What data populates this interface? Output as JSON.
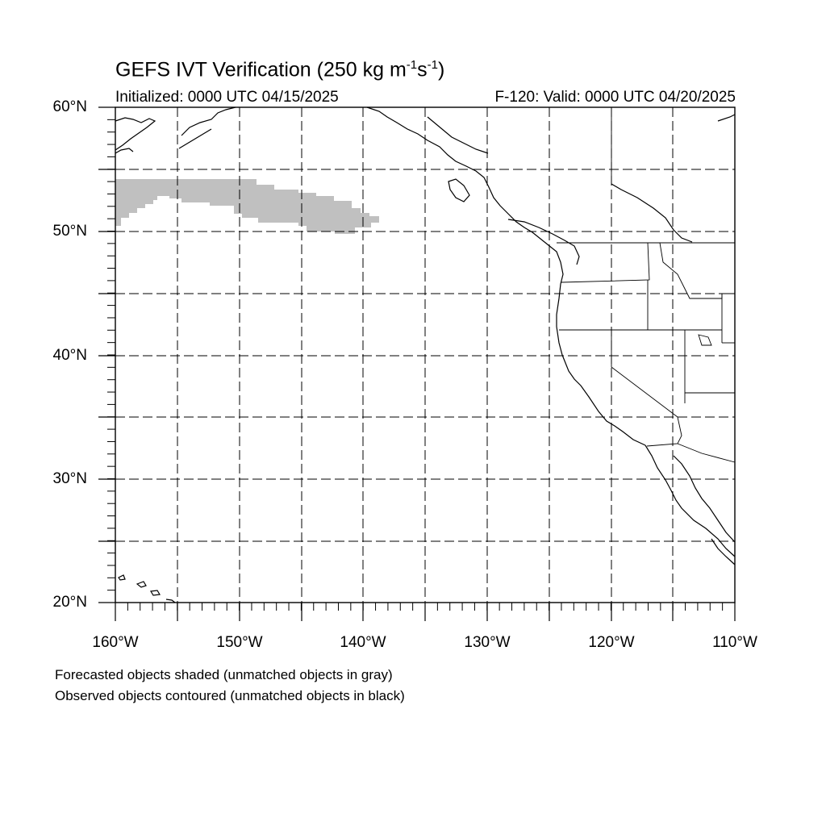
{
  "title": {
    "main": "GEFS IVT Verification (250 kg m",
    "sup1": "-1",
    "mid": "s",
    "sup2": "-1",
    "end": ")"
  },
  "subtitle_left": "Initialized: 0000 UTC 04/15/2025",
  "subtitle_right": "F-120: Valid: 0000 UTC 04/20/2025",
  "lat_labels": [
    "60°N",
    "50°N",
    "40°N",
    "30°N",
    "20°N"
  ],
  "lon_labels": [
    "160°W",
    "150°W",
    "140°W",
    "130°W",
    "120°W",
    "110°W"
  ],
  "notes": [
    "Forecasted objects shaded (unmatched objects in gray)",
    "Observed objects contoured (unmatched objects in black)"
  ],
  "map": {
    "lon_range": [
      -160,
      -110
    ],
    "lat_range": [
      20,
      60
    ],
    "grid_spacing_deg": 5,
    "unmatched_forecast_color": "#c0c0c0",
    "coastline_color": "#000000"
  }
}
